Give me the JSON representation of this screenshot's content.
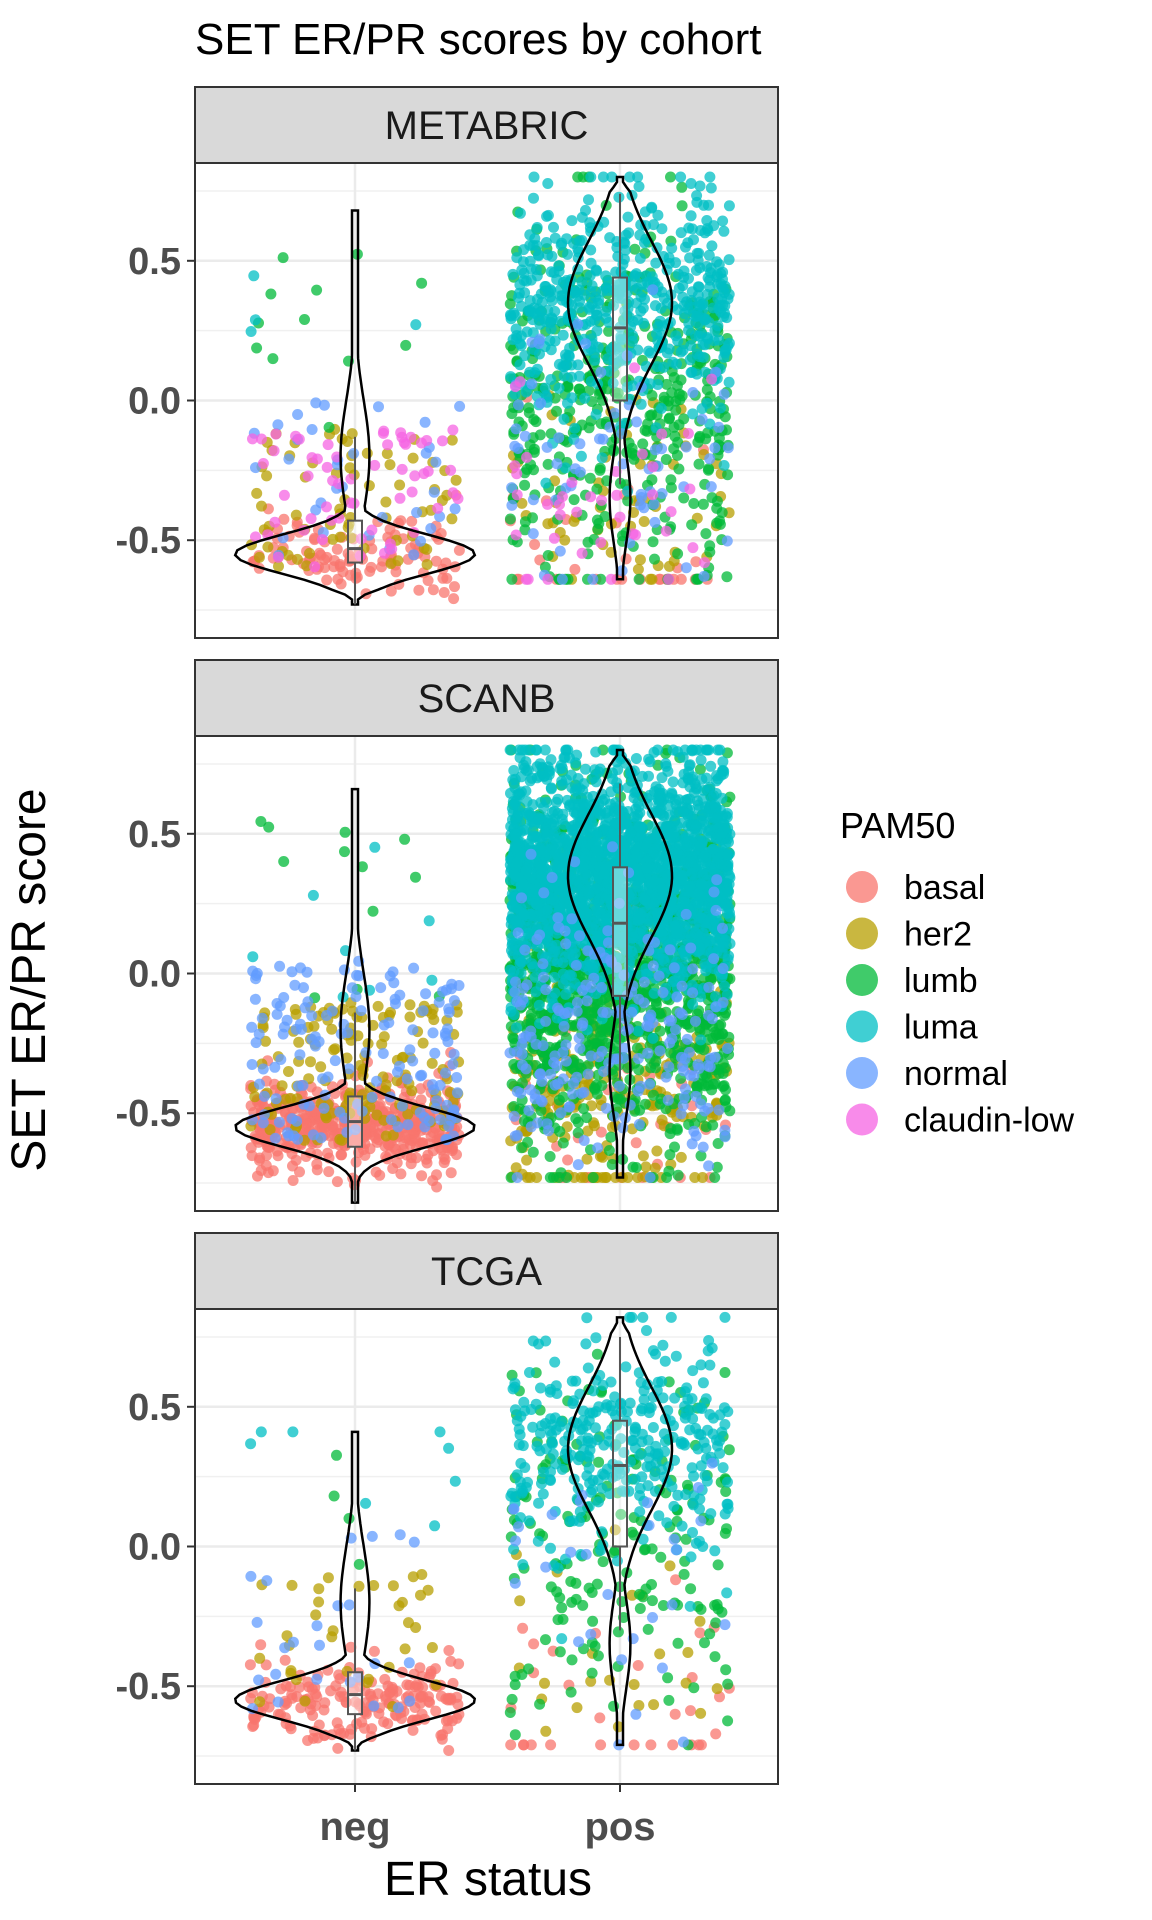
{
  "chart_data": {
    "type": "violin",
    "title": "SET ER/PR scores by cohort",
    "xlabel": "ER status",
    "ylabel": "SET ER/PR score",
    "categories": [
      "neg",
      "pos"
    ],
    "ylim": [
      -0.85,
      0.85
    ],
    "yticks": [
      0.5,
      0.0,
      -0.5
    ],
    "ytick_labels": [
      "0.5",
      "0.0",
      "-0.5"
    ],
    "grid": true,
    "legend": {
      "title": "PAM50",
      "position": "right",
      "entries": [
        {
          "label": "basal",
          "color": "#F8766D"
        },
        {
          "label": "her2",
          "color": "#B79F00"
        },
        {
          "label": "lumb",
          "color": "#00BA38"
        },
        {
          "label": "luma",
          "color": "#00BFC4"
        },
        {
          "label": "normal",
          "color": "#619CFF"
        },
        {
          "label": "claudin-low",
          "color": "#F564E3"
        }
      ]
    },
    "panels": [
      {
        "name": "METABRIC",
        "groups": [
          {
            "category": "neg",
            "violin_range": [
              -0.73,
              0.68
            ],
            "box": {
              "q1": -0.58,
              "median": -0.53,
              "q3": -0.43
            },
            "point_counts": {
              "basal": 110,
              "her2": 70,
              "lumb": 12,
              "luma": 4,
              "normal": 35,
              "claudin-low": 60
            }
          },
          {
            "category": "pos",
            "violin_range": [
              -0.64,
              0.8
            ],
            "box": {
              "q1": 0.0,
              "median": 0.26,
              "q3": 0.44
            },
            "point_counts": {
              "basal": 30,
              "her2": 60,
              "lumb": 420,
              "luma": 520,
              "normal": 70,
              "claudin-low": 40
            }
          }
        ]
      },
      {
        "name": "SCANB",
        "groups": [
          {
            "category": "neg",
            "violin_range": [
              -0.82,
              0.66
            ],
            "box": {
              "q1": -0.62,
              "median": -0.53,
              "q3": -0.44
            },
            "point_counts": {
              "basal": 500,
              "her2": 140,
              "lumb": 12,
              "luma": 8,
              "normal": 150,
              "claudin-low": 0
            }
          },
          {
            "category": "pos",
            "violin_range": [
              -0.73,
              0.8
            ],
            "box": {
              "q1": -0.08,
              "median": 0.18,
              "q3": 0.38
            },
            "point_counts": {
              "basal": 40,
              "her2": 230,
              "lumb": 1300,
              "luma": 2000,
              "normal": 220,
              "claudin-low": 0
            }
          }
        ]
      },
      {
        "name": "TCGA",
        "groups": [
          {
            "category": "neg",
            "violin_range": [
              -0.73,
              0.41
            ],
            "box": {
              "q1": -0.6,
              "median": -0.53,
              "q3": -0.45
            },
            "point_counts": {
              "basal": 190,
              "her2": 35,
              "lumb": 4,
              "luma": 8,
              "normal": 25,
              "claudin-low": 0
            }
          },
          {
            "category": "pos",
            "violin_range": [
              -0.71,
              0.82
            ],
            "box": {
              "q1": 0.0,
              "median": 0.29,
              "q3": 0.45
            },
            "point_counts": {
              "basal": 30,
              "her2": 25,
              "lumb": 180,
              "luma": 330,
              "normal": 30,
              "claudin-low": 0
            }
          }
        ]
      }
    ]
  }
}
